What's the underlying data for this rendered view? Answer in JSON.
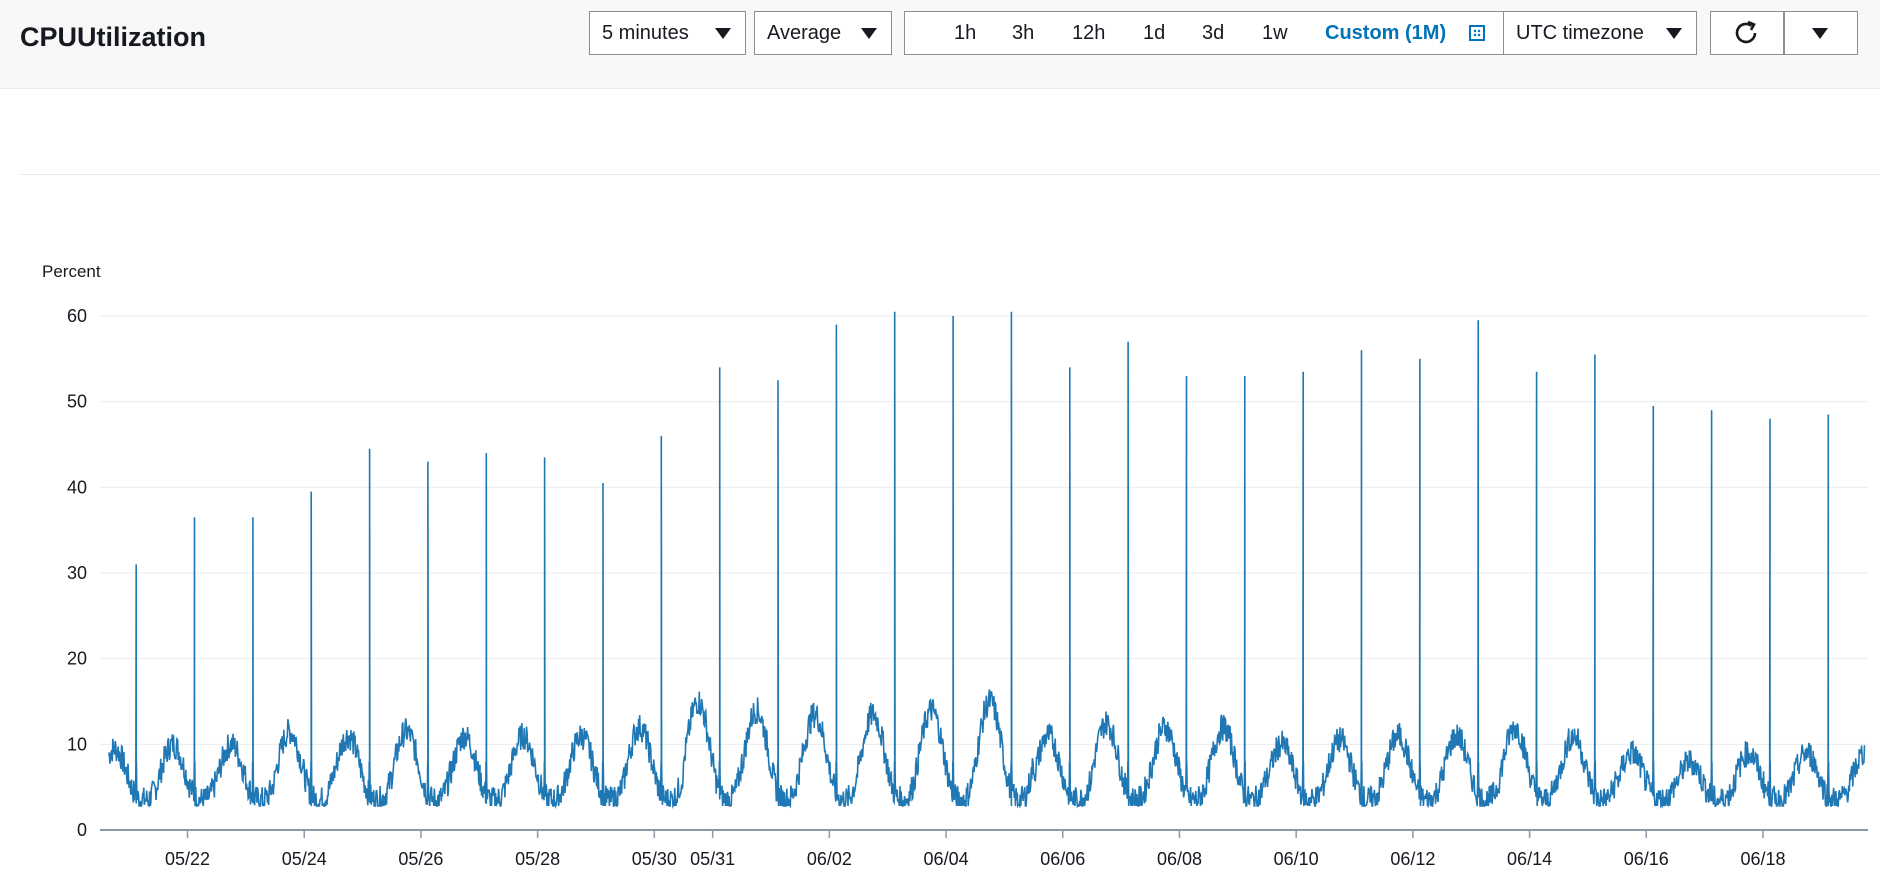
{
  "header": {
    "title": "CPUUtilization",
    "period": "5 minutes",
    "statistic": "Average",
    "ranges": [
      "1h",
      "3h",
      "12h",
      "1d",
      "3d",
      "1w"
    ],
    "custom_range": "Custom (1M)",
    "timezone": "UTC timezone"
  },
  "icons": {
    "calendar": "calendar-icon",
    "refresh": "refresh-icon",
    "dropdown": "caret-down-icon"
  },
  "colors": {
    "series": "#1f77b4",
    "accent": "#0073bb"
  },
  "chart_data": {
    "type": "line",
    "ylabel": "Percent",
    "ylim": [
      0,
      60
    ],
    "yticks": [
      0,
      10,
      20,
      30,
      40,
      50,
      60
    ],
    "xticks": [
      "05/22",
      "05/24",
      "05/26",
      "05/28",
      "05/30",
      "05/31",
      "06/02",
      "06/04",
      "06/06",
      "06/08",
      "06/10",
      "06/12",
      "06/14",
      "06/16",
      "06/18"
    ],
    "xtick_days": [
      1,
      3,
      5,
      7,
      9,
      10,
      12,
      14,
      16,
      18,
      20,
      22,
      24,
      26,
      28
    ],
    "x_range_days": [
      -0.5,
      29.8
    ],
    "grid": true,
    "series": [
      {
        "baseline_daily_max": [
          9.5,
          10,
          10,
          11.5,
          11,
          11.5,
          11,
          11,
          11,
          12,
          15,
          14,
          13.5,
          13.5,
          14,
          15,
          11,
          12.5,
          12,
          12,
          10,
          10.5,
          11,
          11,
          12,
          11,
          9,
          8,
          9,
          9
        ],
        "daily_spike_max": [
          31,
          36.5,
          36.5,
          39.5,
          44.5,
          43,
          44,
          43.5,
          40.5,
          46,
          54,
          52.5,
          59,
          60.5,
          60,
          60.5,
          54,
          57,
          53,
          53,
          53.5,
          56,
          55,
          59.5,
          53.5,
          55.5,
          49.5,
          49,
          48,
          48.5
        ]
      }
    ]
  }
}
